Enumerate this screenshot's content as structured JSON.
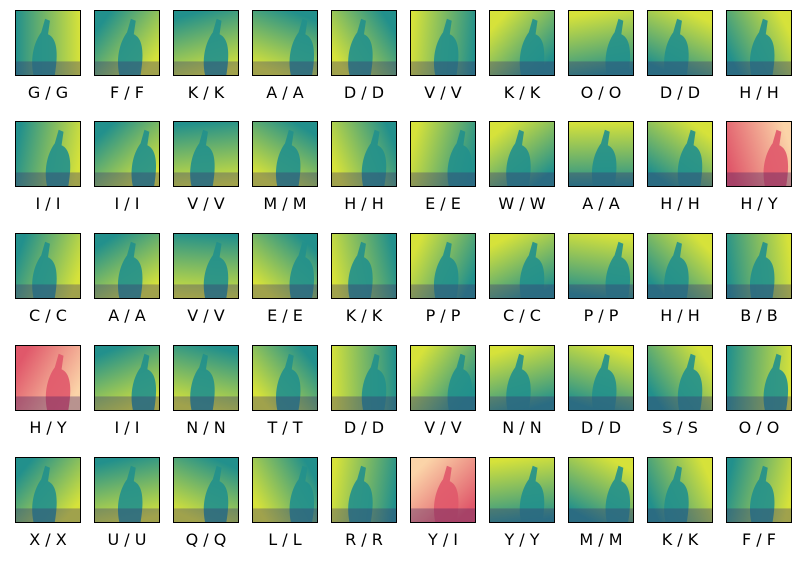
{
  "grid": {
    "rows": [
      [
        {
          "label": "G / G",
          "colormap": "viridis"
        },
        {
          "label": "F / F",
          "colormap": "viridis"
        },
        {
          "label": "K / K",
          "colormap": "viridis"
        },
        {
          "label": "A / A",
          "colormap": "viridis"
        },
        {
          "label": "D / D",
          "colormap": "viridis"
        },
        {
          "label": "V / V",
          "colormap": "viridis"
        },
        {
          "label": "K / K",
          "colormap": "viridis"
        },
        {
          "label": "O / O",
          "colormap": "viridis"
        },
        {
          "label": "D / D",
          "colormap": "viridis"
        },
        {
          "label": "H / H",
          "colormap": "viridis"
        }
      ],
      [
        {
          "label": "I / I",
          "colormap": "viridis"
        },
        {
          "label": "I / I",
          "colormap": "viridis"
        },
        {
          "label": "V / V",
          "colormap": "viridis"
        },
        {
          "label": "M / M",
          "colormap": "viridis"
        },
        {
          "label": "H / H",
          "colormap": "viridis"
        },
        {
          "label": "E / E",
          "colormap": "viridis"
        },
        {
          "label": "W / W",
          "colormap": "viridis"
        },
        {
          "label": "A / A",
          "colormap": "viridis"
        },
        {
          "label": "H / H",
          "colormap": "viridis"
        },
        {
          "label": "H / Y",
          "colormap": "magma"
        }
      ],
      [
        {
          "label": "C / C",
          "colormap": "viridis"
        },
        {
          "label": "A / A",
          "colormap": "viridis"
        },
        {
          "label": "V / V",
          "colormap": "viridis"
        },
        {
          "label": "E / E",
          "colormap": "viridis"
        },
        {
          "label": "K / K",
          "colormap": "viridis"
        },
        {
          "label": "P / P",
          "colormap": "viridis"
        },
        {
          "label": "C / C",
          "colormap": "viridis"
        },
        {
          "label": "P / P",
          "colormap": "viridis"
        },
        {
          "label": "H / H",
          "colormap": "viridis"
        },
        {
          "label": "B / B",
          "colormap": "viridis"
        }
      ],
      [
        {
          "label": "H / Y",
          "colormap": "magma"
        },
        {
          "label": "I / I",
          "colormap": "viridis"
        },
        {
          "label": "N / N",
          "colormap": "viridis"
        },
        {
          "label": "T / T",
          "colormap": "viridis"
        },
        {
          "label": "D / D",
          "colormap": "viridis"
        },
        {
          "label": "V / V",
          "colormap": "viridis"
        },
        {
          "label": "N / N",
          "colormap": "viridis"
        },
        {
          "label": "D / D",
          "colormap": "viridis"
        },
        {
          "label": "S / S",
          "colormap": "viridis"
        },
        {
          "label": "O / O",
          "colormap": "viridis"
        }
      ],
      [
        {
          "label": "X / X",
          "colormap": "viridis"
        },
        {
          "label": "U / U",
          "colormap": "viridis"
        },
        {
          "label": "Q / Q",
          "colormap": "viridis"
        },
        {
          "label": "L / L",
          "colormap": "viridis"
        },
        {
          "label": "R / R",
          "colormap": "viridis"
        },
        {
          "label": "Y / I",
          "colormap": "magma"
        },
        {
          "label": "Y / Y",
          "colormap": "viridis"
        },
        {
          "label": "M / M",
          "colormap": "viridis"
        },
        {
          "label": "K / K",
          "colormap": "viridis"
        },
        {
          "label": "F / F",
          "colormap": "viridis"
        }
      ]
    ]
  },
  "colors": {
    "viridis_dark": "#3b2a6f",
    "viridis_mid": "#22908c",
    "viridis_light": "#d6e23a",
    "magma_dark": "#3b1b60",
    "magma_mid": "#e0586a",
    "magma_light": "#fbd4a8"
  }
}
